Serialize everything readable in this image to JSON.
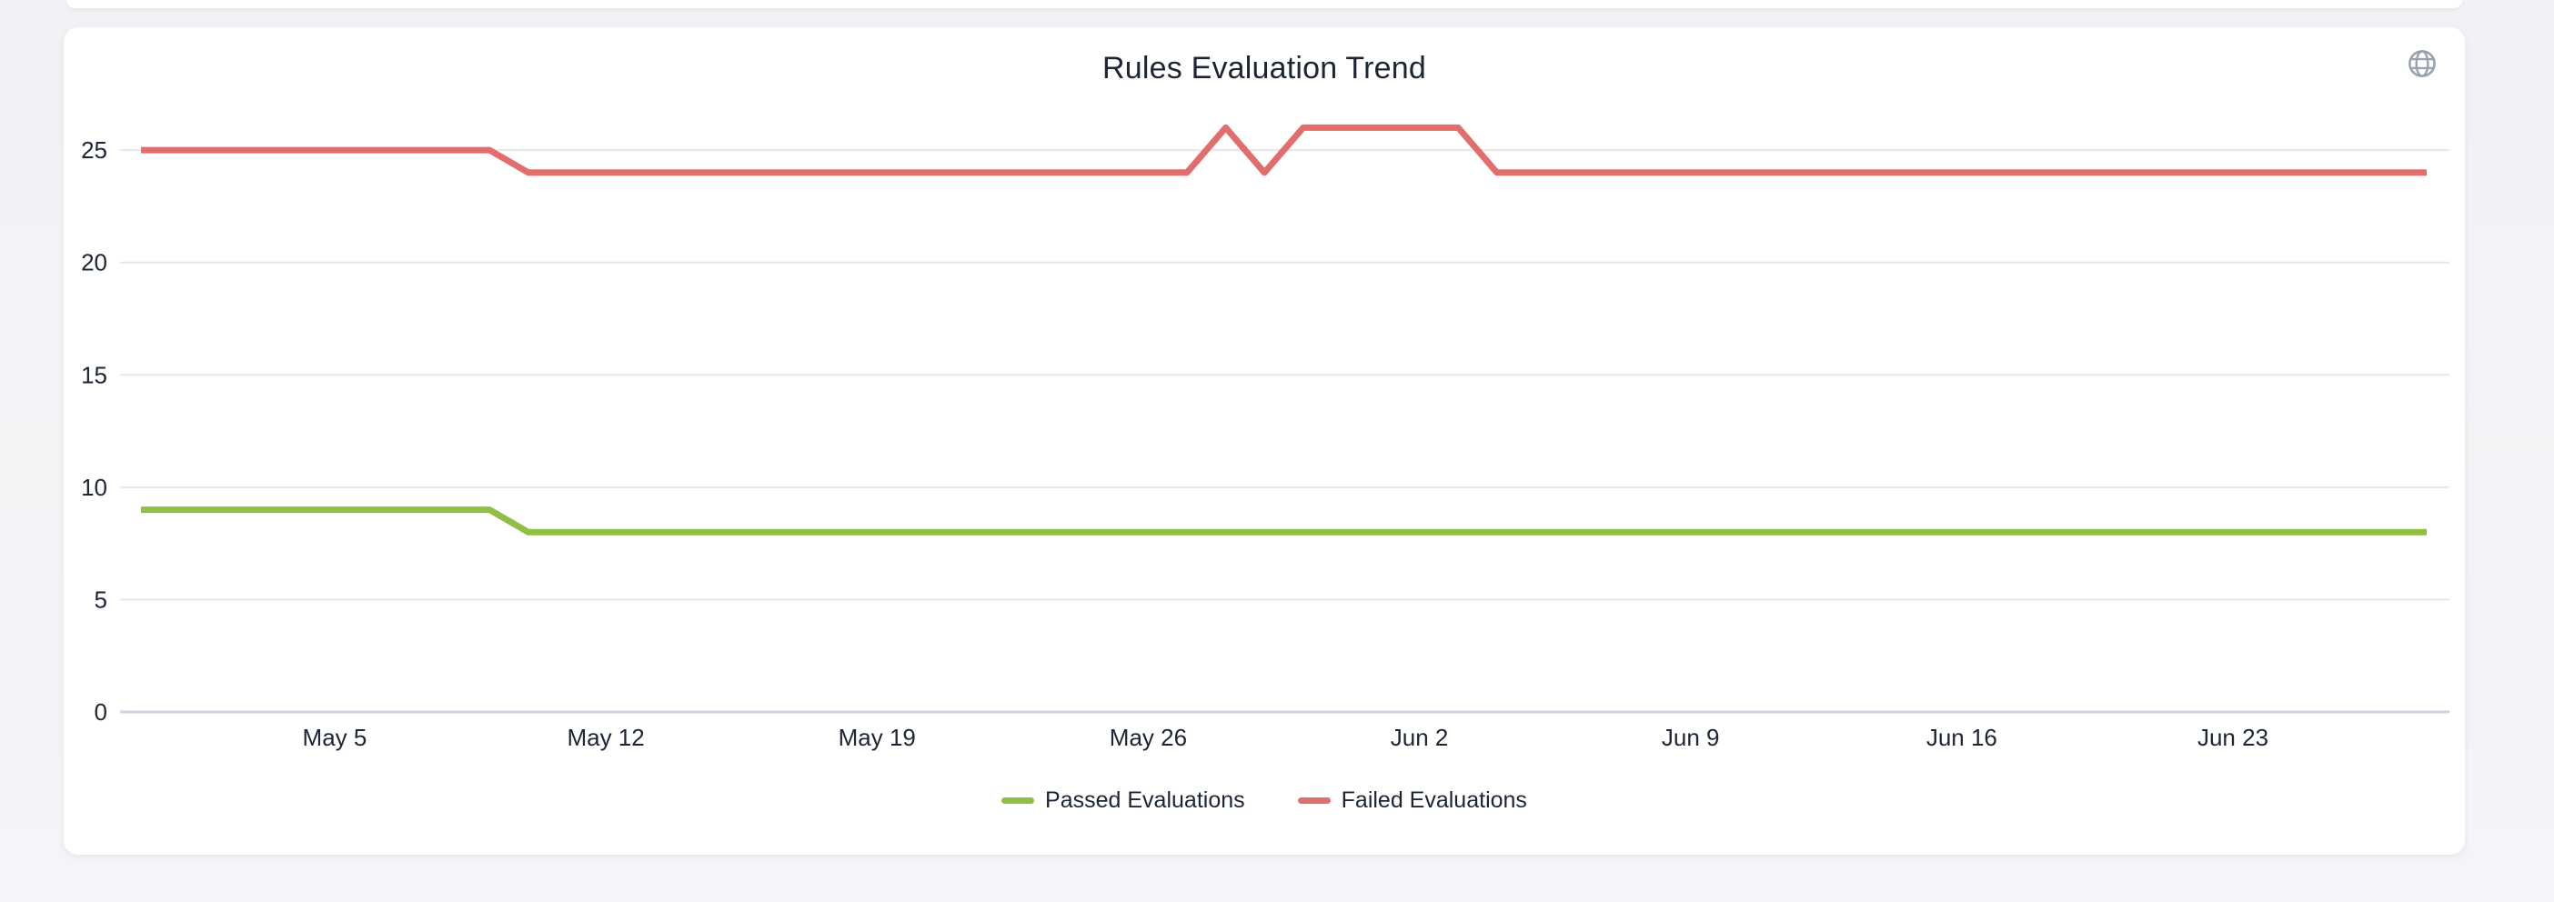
{
  "page": {
    "background_color": "#f2f3f6"
  },
  "card": {
    "header_icon": "globe",
    "header_icon_color": "#9aa2ad"
  },
  "chart_data": {
    "type": "line",
    "title": "Rules Evaluation Trend",
    "title_color": "#1b2533",
    "axis_label_color": "#1c2533",
    "gridline_color": "#e6e6e6",
    "baseline_color": "#ccd3e3",
    "grid": true,
    "legend_position": "bottom",
    "ylim": [
      0,
      26
    ],
    "y_ticks": [
      0,
      5,
      10,
      15,
      20,
      25
    ],
    "x_tick_labels": [
      "May 5",
      "May 12",
      "May 19",
      "May 26",
      "Jun 2",
      "Jun 9",
      "Jun 16",
      "Jun 23"
    ],
    "x": [
      "Apr 30",
      "May 1",
      "May 2",
      "May 3",
      "May 4",
      "May 5",
      "May 6",
      "May 7",
      "May 8",
      "May 9",
      "May 10",
      "May 11",
      "May 12",
      "May 13",
      "May 14",
      "May 15",
      "May 16",
      "May 17",
      "May 18",
      "May 19",
      "May 20",
      "May 21",
      "May 22",
      "May 23",
      "May 24",
      "May 25",
      "May 26",
      "May 27",
      "May 28",
      "May 29",
      "May 30",
      "May 31",
      "Jun 1",
      "Jun 2",
      "Jun 3",
      "Jun 4",
      "Jun 5",
      "Jun 6",
      "Jun 7",
      "Jun 8",
      "Jun 9",
      "Jun 10",
      "Jun 11",
      "Jun 12",
      "Jun 13",
      "Jun 14",
      "Jun 15",
      "Jun 16",
      "Jun 17",
      "Jun 18",
      "Jun 19",
      "Jun 20",
      "Jun 21",
      "Jun 22",
      "Jun 23",
      "Jun 24",
      "Jun 25",
      "Jun 26",
      "Jun 27",
      "Jun 28"
    ],
    "series": [
      {
        "name": "Passed Evaluations",
        "color": "#8fbf45",
        "values": [
          9,
          9,
          9,
          9,
          9,
          9,
          9,
          9,
          9,
          9,
          8,
          8,
          8,
          8,
          8,
          8,
          8,
          8,
          8,
          8,
          8,
          8,
          8,
          8,
          8,
          8,
          8,
          8,
          8,
          8,
          8,
          8,
          8,
          8,
          8,
          8,
          8,
          8,
          8,
          8,
          8,
          8,
          8,
          8,
          8,
          8,
          8,
          8,
          8,
          8,
          8,
          8,
          8,
          8,
          8,
          8,
          8,
          8,
          8,
          8
        ]
      },
      {
        "name": "Failed Evaluations",
        "color": "#e26d6d",
        "values": [
          25,
          25,
          25,
          25,
          25,
          25,
          25,
          25,
          25,
          25,
          24,
          24,
          24,
          24,
          24,
          24,
          24,
          24,
          24,
          24,
          24,
          24,
          24,
          24,
          24,
          24,
          24,
          24,
          26,
          24,
          26,
          26,
          26,
          26,
          26,
          24,
          24,
          24,
          24,
          24,
          24,
          24,
          24,
          24,
          24,
          24,
          24,
          24,
          24,
          24,
          24,
          24,
          24,
          24,
          24,
          24,
          24,
          24,
          24,
          24
        ]
      }
    ]
  }
}
